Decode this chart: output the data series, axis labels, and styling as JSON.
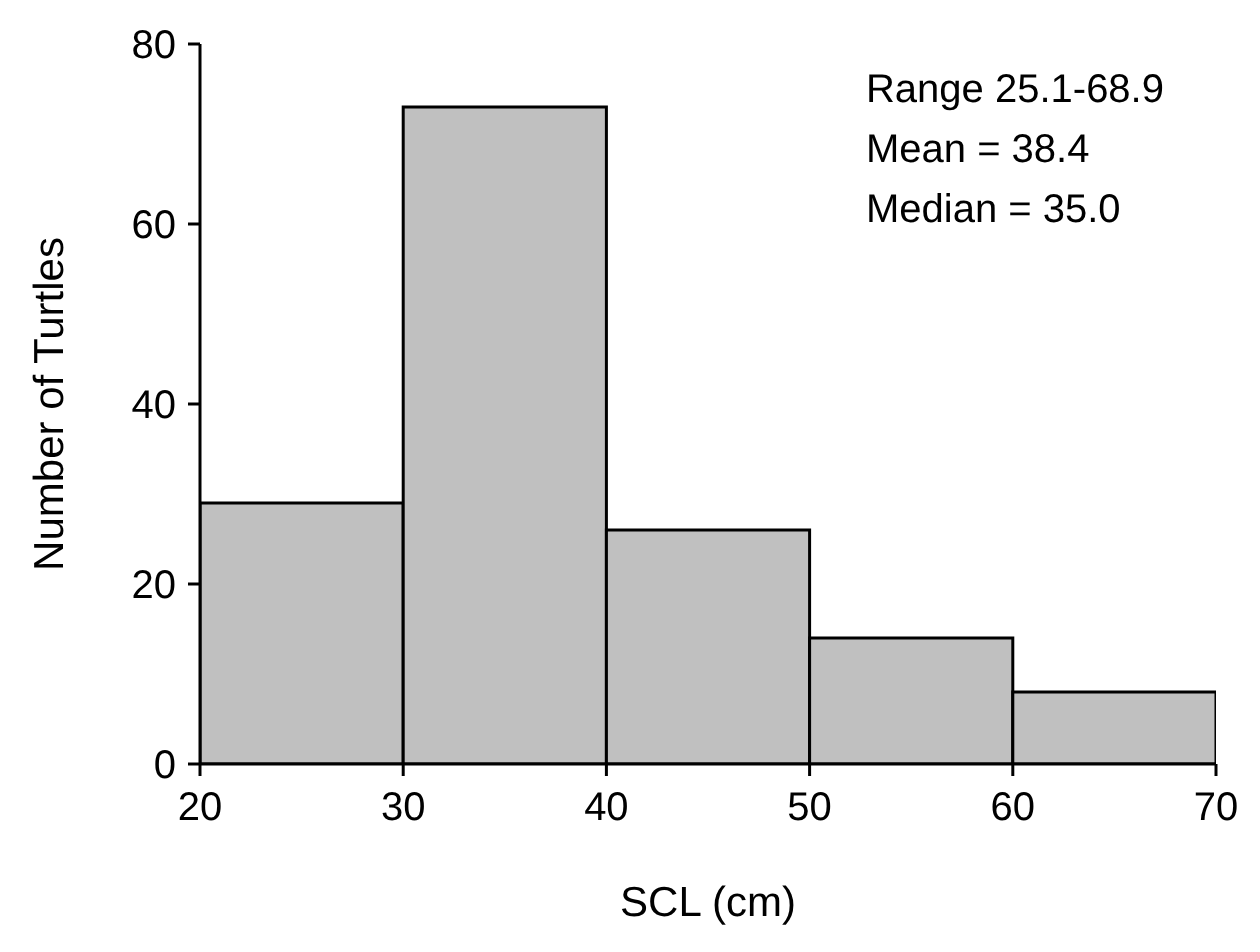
{
  "chart_data": {
    "type": "histogram",
    "xlabel": "SCL (cm)",
    "ylabel": "Number of Turtles",
    "bins": [
      20,
      30,
      40,
      50,
      60,
      70
    ],
    "values": [
      29,
      73,
      26,
      14,
      8
    ],
    "color": "#c0c0c0",
    "xlim": [
      20,
      70
    ],
    "xticks": [
      20,
      30,
      40,
      50,
      60,
      70
    ],
    "ylim": [
      0,
      80
    ],
    "yticks": [
      0,
      20,
      40,
      60,
      80
    ],
    "annotations": [
      "Range 25.1-68.9",
      "Mean = 38.4",
      "Median = 35.0"
    ]
  }
}
